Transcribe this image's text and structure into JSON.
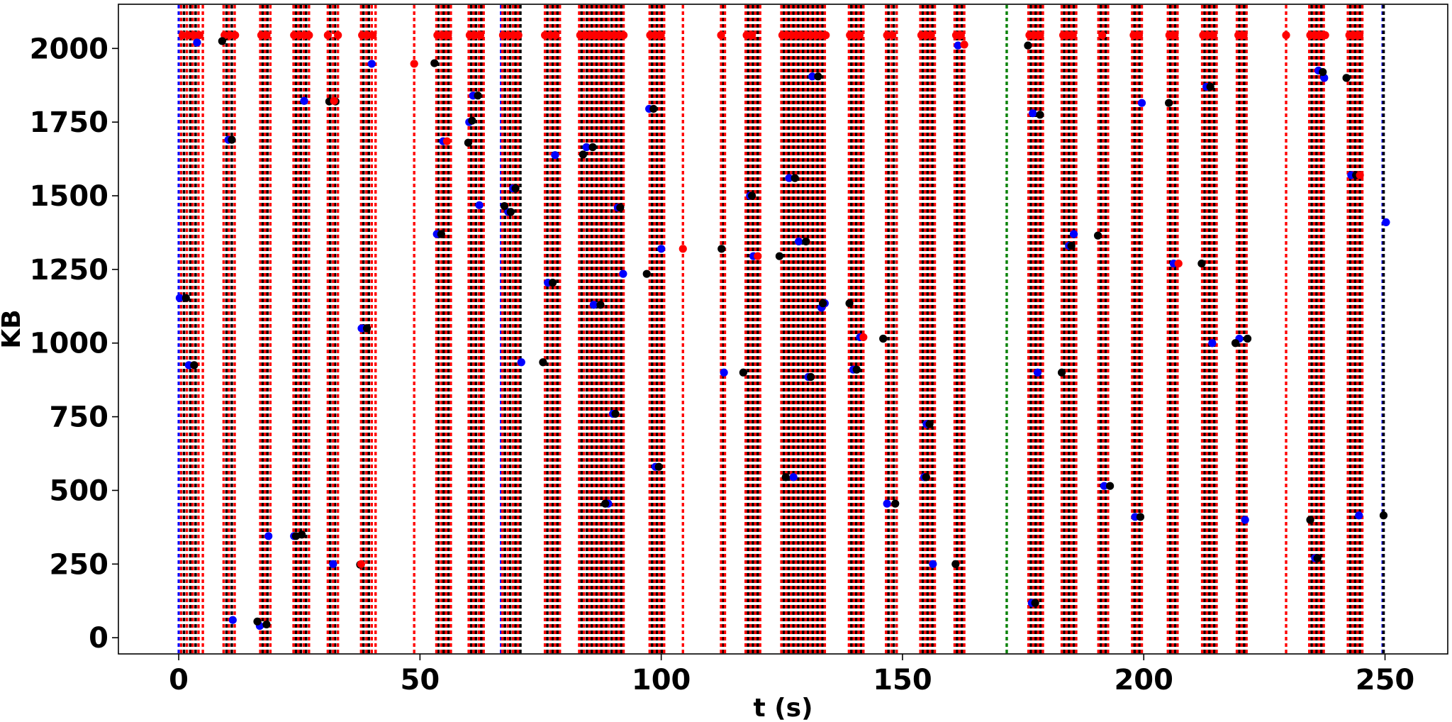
{
  "chart_data": {
    "type": "scatter",
    "title": "",
    "xlabel": "t (s)",
    "ylabel": "KB",
    "xlim": [
      -12.5,
      263
    ],
    "ylim": [
      -55,
      2150
    ],
    "xticks": [
      0,
      50,
      100,
      150,
      200,
      250
    ],
    "yticks": [
      0,
      250,
      500,
      750,
      1000,
      1250,
      1500,
      1750,
      2000
    ],
    "grid": false,
    "vertical_line_groups": [
      {
        "start": 0,
        "blue_line": true,
        "black": [
          1.1,
          2.4,
          3.5
        ],
        "red": [
          0.5,
          1.7,
          2.9,
          4.1,
          5.0
        ]
      },
      {
        "start": 8.8,
        "blue_line": false,
        "black": [
          9.9,
          11.0
        ],
        "red": [
          9.3,
          10.4,
          11.6
        ]
      },
      {
        "start": 16.5,
        "blue_line": false,
        "black": [
          17.4,
          18.4
        ],
        "red": [
          16.9,
          17.9,
          19.0
        ]
      },
      {
        "start": 23.5,
        "blue_line": false,
        "black": [
          24.3,
          25.3,
          26.4
        ],
        "red": [
          23.8,
          24.8,
          25.9,
          27.0
        ]
      },
      {
        "start": 30.6,
        "blue_line": false,
        "black": [
          31.4,
          32.4
        ],
        "red": [
          30.9,
          32.0,
          33.0
        ]
      },
      {
        "start": 37.5,
        "blue_line": false,
        "black": [
          38.3,
          39.4
        ],
        "red": [
          37.8,
          38.9,
          40.0,
          40.8
        ]
      },
      {
        "start": 53.0,
        "blue_line": false,
        "black": [
          53.8,
          54.9,
          55.9
        ],
        "red": [
          53.4,
          54.4,
          55.4,
          56.4
        ]
      },
      {
        "start": 59.8,
        "blue_line": false,
        "black": [
          60.6,
          61.6,
          62.7
        ],
        "red": [
          60.1,
          61.1,
          62.2,
          63.2
        ]
      },
      {
        "start": 66.8,
        "blue_line": true,
        "black": [
          67.6,
          68.7,
          69.8,
          70.8
        ],
        "red": [
          67.1,
          68.2,
          69.3,
          70.3
        ]
      },
      {
        "start": 75.6,
        "blue_line": false,
        "black": [
          76.4,
          77.5,
          78.5
        ],
        "red": [
          75.9,
          77.0,
          78.0,
          79.0
        ]
      },
      {
        "start": 82.7,
        "blue_line": false,
        "black": [
          83.5,
          84.6,
          85.6,
          86.6,
          87.6,
          88.6,
          89.7,
          90.7,
          91.7
        ],
        "red": [
          83.0,
          84.0,
          85.1,
          86.1,
          87.1,
          88.1,
          89.1,
          90.2,
          91.2,
          92.2
        ]
      },
      {
        "start": 97.3,
        "blue_line": false,
        "black": [
          98.1,
          99.1,
          100.1
        ],
        "red": [
          97.6,
          98.6,
          99.6,
          100.6
        ]
      },
      {
        "start": 112.0,
        "blue_line": false,
        "black": [
          112.8
        ],
        "red": [
          112.4,
          113.2
        ]
      },
      {
        "start": 117.2,
        "blue_line": false,
        "black": [
          118.0,
          119.0,
          120.0
        ],
        "red": [
          117.5,
          118.5,
          119.5,
          120.5
        ]
      },
      {
        "start": 124.6,
        "blue_line": false,
        "black": [
          125.4,
          126.4,
          127.4,
          128.4,
          129.4,
          130.4,
          131.4,
          132.4,
          133.4
        ],
        "red": [
          124.9,
          125.9,
          126.9,
          127.9,
          128.9,
          129.9,
          130.9,
          131.9,
          132.9,
          133.9
        ]
      },
      {
        "start": 138.6,
        "blue_line": false,
        "black": [
          139.4,
          140.4,
          141.4
        ],
        "red": [
          138.9,
          139.9,
          140.9,
          141.9
        ]
      },
      {
        "start": 146.3,
        "blue_line": false,
        "black": [
          147.1,
          148.2
        ],
        "red": [
          146.6,
          147.7,
          148.8
        ]
      },
      {
        "start": 153.4,
        "blue_line": false,
        "black": [
          154.2,
          155.2,
          156.2
        ],
        "red": [
          153.7,
          154.7,
          155.7,
          156.7
        ]
      },
      {
        "start": 160.5,
        "blue_line": false,
        "black": [
          161.3,
          162.3
        ],
        "red": [
          160.8,
          161.8,
          162.8
        ]
      },
      {
        "start": 175.8,
        "blue_line": false,
        "black": [
          176.6,
          177.6,
          178.6
        ],
        "red": [
          176.1,
          177.1,
          178.1,
          179.1
        ]
      },
      {
        "start": 182.7,
        "blue_line": false,
        "black": [
          183.5,
          184.5,
          185.5
        ],
        "red": [
          183.0,
          184.0,
          185.0,
          186.0
        ]
      },
      {
        "start": 190.3,
        "blue_line": false,
        "black": [
          191.1,
          192.1
        ],
        "red": [
          190.6,
          191.6,
          192.6
        ]
      },
      {
        "start": 197.3,
        "blue_line": false,
        "black": [
          198.1,
          199.1
        ],
        "red": [
          197.6,
          198.6,
          199.6
        ]
      },
      {
        "start": 204.7,
        "blue_line": false,
        "black": [
          205.5,
          206.5
        ],
        "red": [
          205.0,
          206.0,
          207.0
        ]
      },
      {
        "start": 211.8,
        "blue_line": false,
        "black": [
          212.6,
          213.6,
          214.6
        ],
        "red": [
          212.1,
          213.1,
          214.1,
          215.1
        ]
      },
      {
        "start": 219.0,
        "blue_line": false,
        "black": [
          219.8,
          220.8
        ],
        "red": [
          219.3,
          220.3,
          221.3
        ]
      },
      {
        "start": 234.0,
        "blue_line": false,
        "black": [
          234.8,
          235.8,
          236.8
        ],
        "red": [
          234.3,
          235.3,
          236.3,
          237.3
        ]
      },
      {
        "start": 242.0,
        "blue_line": false,
        "black": [
          242.8,
          243.8,
          244.8
        ],
        "red": [
          242.3,
          243.3,
          244.3,
          245.3
        ]
      },
      {
        "start": 249.5,
        "blue_line": true,
        "black": [
          249.7
        ],
        "red": []
      }
    ],
    "single_red_lines": [
      48.8,
      104.5,
      229.5
    ],
    "green_lines": [
      171.6
    ],
    "top_red_dots_y": 2045,
    "top_red_dots_x": [
      0.8,
      2.0,
      3.2,
      4.3,
      9.5,
      10.6,
      11.7,
      17.1,
      18.2,
      23.9,
      25.0,
      26.1,
      27.0,
      30.9,
      33.0,
      38.0,
      39.1,
      40.2,
      53.6,
      54.7,
      55.8,
      60.3,
      61.4,
      62.5,
      67.2,
      68.3,
      69.4,
      70.4,
      75.9,
      77.0,
      78.1,
      83.2,
      84.3,
      85.4,
      86.4,
      87.4,
      88.4,
      89.4,
      90.4,
      91.4,
      92.2,
      97.7,
      98.8,
      99.9,
      112.4,
      117.7,
      118.8,
      125.1,
      126.1,
      127.1,
      128.1,
      129.1,
      130.1,
      131.1,
      132.1,
      133.1,
      134.1,
      139.1,
      140.1,
      141.1,
      146.8,
      147.9,
      153.9,
      154.9,
      155.9,
      161.1,
      162.1,
      176.3,
      177.4,
      178.5,
      183.3,
      184.3,
      185.3,
      191.4,
      197.9,
      199.0,
      205.3,
      206.4,
      212.3,
      213.3,
      214.4,
      219.6,
      220.7,
      229.5,
      234.5,
      235.6,
      236.7,
      237.6,
      242.6,
      243.6,
      244.7
    ],
    "series": [
      {
        "name": "blue",
        "color": "#0000ff",
        "points": [
          [
            0.2,
            1153
          ],
          [
            3.8,
            2020
          ],
          [
            2.1,
            925
          ],
          [
            10.3,
            1690
          ],
          [
            11.2,
            60
          ],
          [
            16.8,
            40
          ],
          [
            18.6,
            345
          ],
          [
            23.9,
            345
          ],
          [
            26.0,
            1822
          ],
          [
            32.0,
            250
          ],
          [
            37.9,
            1050
          ],
          [
            40.0,
            1948
          ],
          [
            53.5,
            1370
          ],
          [
            54.8,
            1685
          ],
          [
            60.2,
            1750
          ],
          [
            61.0,
            1840
          ],
          [
            62.3,
            1468
          ],
          [
            68.3,
            1445
          ],
          [
            69.3,
            1525
          ],
          [
            71.0,
            935
          ],
          [
            76.5,
            1205
          ],
          [
            78.0,
            1638
          ],
          [
            84.5,
            1665
          ],
          [
            86.0,
            1130
          ],
          [
            89.0,
            455
          ],
          [
            90.0,
            760
          ],
          [
            91.0,
            1460
          ],
          [
            92.1,
            1235
          ],
          [
            97.5,
            1795
          ],
          [
            98.8,
            580
          ],
          [
            100.0,
            1320
          ],
          [
            113.0,
            900
          ],
          [
            118.4,
            1500
          ],
          [
            119.1,
            1295
          ],
          [
            126.5,
            1560
          ],
          [
            127.4,
            545
          ],
          [
            128.5,
            1345
          ],
          [
            130.5,
            885
          ],
          [
            131.3,
            1905
          ],
          [
            133.2,
            1120
          ],
          [
            133.9,
            1135
          ],
          [
            139.8,
            910
          ],
          [
            141.2,
            1020
          ],
          [
            146.8,
            455
          ],
          [
            154.5,
            545
          ],
          [
            155.0,
            725
          ],
          [
            156.3,
            250
          ],
          [
            161.5,
            2010
          ],
          [
            177.0,
            1780
          ],
          [
            176.8,
            118
          ],
          [
            178.0,
            900
          ],
          [
            184.5,
            1330
          ],
          [
            185.5,
            1370
          ],
          [
            191.8,
            515
          ],
          [
            198.2,
            410
          ],
          [
            199.6,
            1815
          ],
          [
            206.2,
            1270
          ],
          [
            213.0,
            1870
          ],
          [
            214.2,
            1000
          ],
          [
            219.8,
            1015
          ],
          [
            221.0,
            400
          ],
          [
            235.5,
            270
          ],
          [
            236.2,
            1925
          ],
          [
            237.4,
            1900
          ],
          [
            243.0,
            1570
          ],
          [
            244.6,
            415
          ],
          [
            250.2,
            1410
          ]
        ]
      },
      {
        "name": "black",
        "color": "#000000",
        "points": [
          [
            1.5,
            1153
          ],
          [
            9.0,
            2025
          ],
          [
            3.2,
            925
          ],
          [
            11.0,
            1690
          ],
          [
            16.3,
            55
          ],
          [
            18.2,
            45
          ],
          [
            25.5,
            350
          ],
          [
            24.3,
            345
          ],
          [
            31.2,
            1820
          ],
          [
            32.5,
            1820
          ],
          [
            37.6,
            248
          ],
          [
            39.0,
            1050
          ],
          [
            53.0,
            1950
          ],
          [
            54.4,
            1370
          ],
          [
            60.0,
            1680
          ],
          [
            60.8,
            1755
          ],
          [
            62.0,
            1840
          ],
          [
            67.5,
            1465
          ],
          [
            68.8,
            1445
          ],
          [
            69.8,
            1525
          ],
          [
            75.5,
            935
          ],
          [
            77.5,
            1205
          ],
          [
            83.8,
            1640
          ],
          [
            85.8,
            1665
          ],
          [
            87.4,
            1130
          ],
          [
            88.4,
            455
          ],
          [
            90.5,
            760
          ],
          [
            91.5,
            1460
          ],
          [
            97.0,
            1235
          ],
          [
            98.4,
            1795
          ],
          [
            99.5,
            580
          ],
          [
            112.5,
            1320
          ],
          [
            117.0,
            900
          ],
          [
            118.8,
            1500
          ],
          [
            124.5,
            1295
          ],
          [
            125.8,
            545
          ],
          [
            127.7,
            1560
          ],
          [
            130.0,
            1345
          ],
          [
            131.0,
            885
          ],
          [
            132.5,
            1905
          ],
          [
            133.5,
            1135
          ],
          [
            139.0,
            1135
          ],
          [
            140.5,
            910
          ],
          [
            146.0,
            1015
          ],
          [
            148.5,
            455
          ],
          [
            154.9,
            545
          ],
          [
            155.6,
            725
          ],
          [
            161.0,
            250
          ],
          [
            176.0,
            2010
          ],
          [
            178.5,
            1775
          ],
          [
            177.5,
            118
          ],
          [
            183.0,
            900
          ],
          [
            185.0,
            1330
          ],
          [
            190.5,
            1365
          ],
          [
            193.0,
            515
          ],
          [
            199.3,
            410
          ],
          [
            205.2,
            1815
          ],
          [
            212.0,
            1270
          ],
          [
            213.8,
            1870
          ],
          [
            219.0,
            1000
          ],
          [
            221.5,
            1015
          ],
          [
            234.5,
            400
          ],
          [
            236.0,
            270
          ],
          [
            237.1,
            1920
          ],
          [
            242.0,
            1900
          ],
          [
            244.0,
            1570
          ],
          [
            249.7,
            415
          ]
        ]
      },
      {
        "name": "red",
        "color": "#ff0000",
        "points": [
          [
            48.8,
            1948
          ],
          [
            55.6,
            1685
          ],
          [
            104.5,
            1320
          ],
          [
            120.0,
            1295
          ],
          [
            141.9,
            1020
          ],
          [
            162.8,
            2013
          ],
          [
            207.2,
            1270
          ],
          [
            37.8,
            250
          ],
          [
            32.2,
            1822
          ],
          [
            244.8,
            1570
          ]
        ]
      }
    ]
  }
}
